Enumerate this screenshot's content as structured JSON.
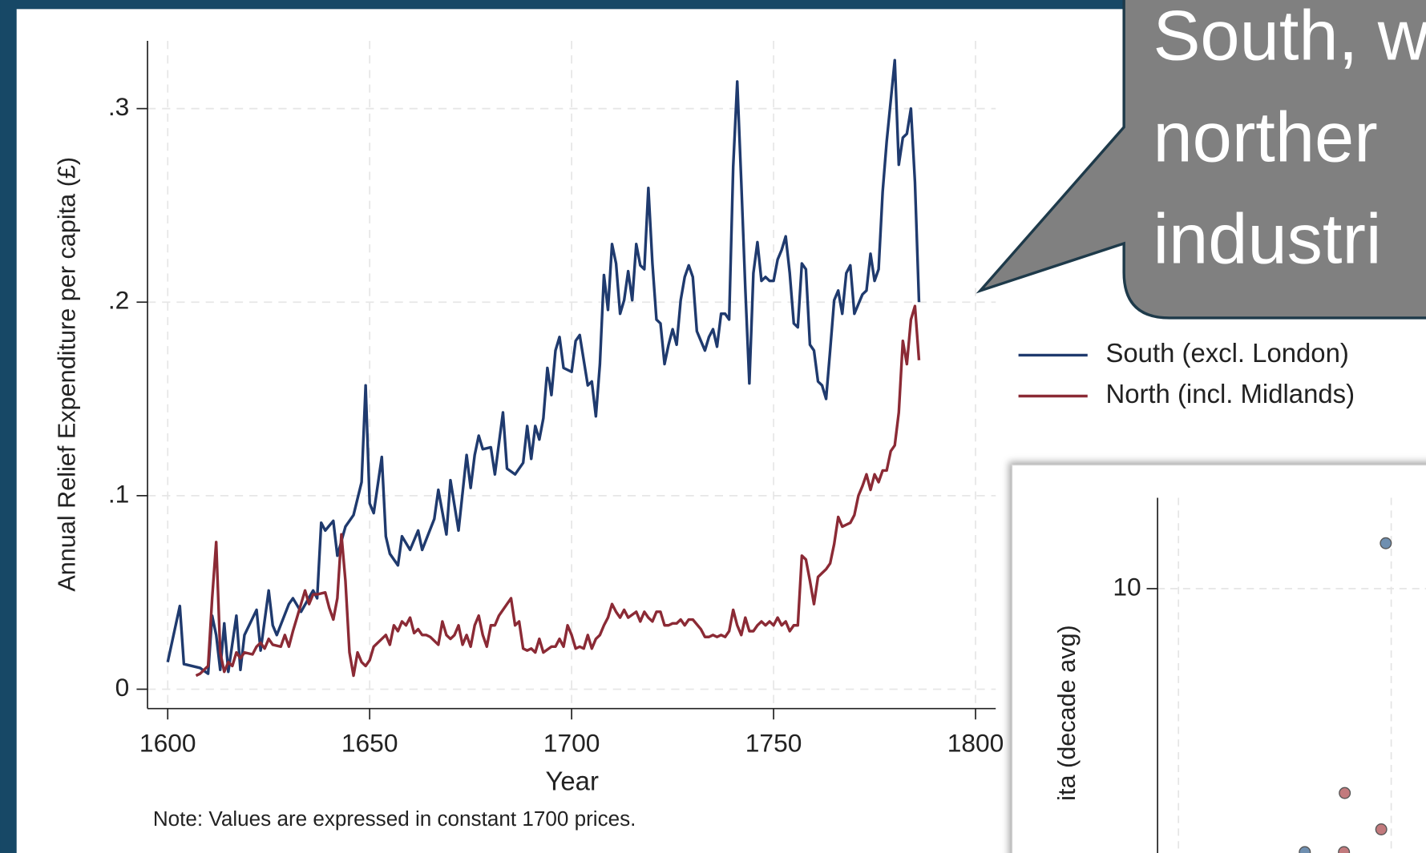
{
  "chart_data": [
    {
      "type": "line",
      "y_label": "Annual Relief Expenditure per capita (£)",
      "x_label": "Year",
      "note": "Note: Values are expressed in constant 1700 prices.",
      "xlim": [
        1595,
        1805
      ],
      "xticks": [
        1600,
        1650,
        1700,
        1750,
        1800
      ],
      "ylim": [
        -0.01,
        0.335
      ],
      "yticks": [
        0,
        {
          "value": 0.1,
          "label": ".1"
        },
        {
          "value": 0.2,
          "label": ".2"
        },
        {
          "value": 0.3,
          "label": ".3"
        }
      ],
      "grid": true,
      "legend": "right",
      "series": [
        {
          "name": "South (excl. London)",
          "color": "#1f3a6e",
          "x": [
            1600,
            1603,
            1604,
            1608,
            1610,
            1611,
            1612,
            1613,
            1614,
            1615,
            1617,
            1618,
            1619,
            1622,
            1623,
            1625,
            1626,
            1627,
            1630,
            1631,
            1633,
            1636,
            1637,
            1638,
            1639,
            1641,
            1642,
            1644,
            1646,
            1648,
            1649,
            1650,
            1651,
            1653,
            1654,
            1655,
            1657,
            1658,
            1660,
            1662,
            1663,
            1666,
            1667,
            1669,
            1670,
            1672,
            1674,
            1675,
            1676,
            1677,
            1678,
            1680,
            1681,
            1683,
            1684,
            1686,
            1688,
            1689,
            1690,
            1691,
            1692,
            1693,
            1694,
            1695,
            1696,
            1697,
            1698,
            1700,
            1701,
            1702,
            1704,
            1705,
            1706,
            1707,
            1708,
            1709,
            1710,
            1711,
            1712,
            1713,
            1714,
            1715,
            1716,
            1717,
            1718,
            1719,
            1720,
            1721,
            1722,
            1723,
            1724,
            1725,
            1726,
            1727,
            1728,
            1729,
            1730,
            1731,
            1732,
            1733,
            1734,
            1735,
            1736,
            1737,
            1738,
            1739,
            1740,
            1741,
            1742,
            1743,
            1744,
            1745,
            1746,
            1747,
            1748,
            1749,
            1750,
            1751,
            1752,
            1753,
            1754,
            1755,
            1756,
            1757,
            1758,
            1759,
            1760,
            1761,
            1762,
            1763,
            1764,
            1765,
            1766,
            1767,
            1768,
            1769,
            1770,
            1771,
            1772,
            1773,
            1774,
            1775,
            1776,
            1777,
            1778,
            1779,
            1780,
            1781,
            1782,
            1783,
            1784,
            1785,
            1786
          ],
          "values": [
            0.014,
            0.043,
            0.013,
            0.011,
            0.008,
            0.038,
            0.028,
            0.01,
            0.034,
            0.009,
            0.038,
            0.01,
            0.028,
            0.041,
            0.02,
            0.051,
            0.033,
            0.028,
            0.044,
            0.047,
            0.04,
            0.051,
            0.047,
            0.086,
            0.082,
            0.087,
            0.069,
            0.084,
            0.09,
            0.107,
            0.157,
            0.096,
            0.091,
            0.12,
            0.079,
            0.07,
            0.064,
            0.079,
            0.072,
            0.082,
            0.072,
            0.088,
            0.103,
            0.08,
            0.108,
            0.082,
            0.121,
            0.104,
            0.121,
            0.131,
            0.124,
            0.125,
            0.111,
            0.143,
            0.114,
            0.111,
            0.117,
            0.136,
            0.119,
            0.136,
            0.129,
            0.14,
            0.166,
            0.152,
            0.175,
            0.182,
            0.166,
            0.164,
            0.18,
            0.183,
            0.157,
            0.159,
            0.141,
            0.168,
            0.214,
            0.196,
            0.23,
            0.22,
            0.194,
            0.201,
            0.216,
            0.201,
            0.23,
            0.219,
            0.217,
            0.259,
            0.22,
            0.191,
            0.189,
            0.168,
            0.178,
            0.186,
            0.178,
            0.201,
            0.213,
            0.219,
            0.213,
            0.185,
            0.18,
            0.175,
            0.182,
            0.186,
            0.177,
            0.194,
            0.194,
            0.191,
            0.27,
            0.314,
            0.262,
            0.207,
            0.158,
            0.215,
            0.231,
            0.211,
            0.213,
            0.211,
            0.211,
            0.222,
            0.227,
            0.234,
            0.215,
            0.189,
            0.187,
            0.22,
            0.217,
            0.178,
            0.175,
            0.159,
            0.157,
            0.15,
            0.175,
            0.201,
            0.206,
            0.194,
            0.215,
            0.219,
            0.194,
            0.199,
            0.204,
            0.206,
            0.225,
            0.211,
            0.217,
            0.257,
            0.283,
            0.304,
            0.325,
            0.271,
            0.285,
            0.287,
            0.3,
            0.262,
            0.2
          ]
        },
        {
          "name": "North (incl. Midlands)",
          "color": "#8b2a35",
          "x": [
            1607,
            1608,
            1610,
            1611,
            1612,
            1613,
            1614,
            1615,
            1616,
            1617,
            1618,
            1619,
            1621,
            1622,
            1623,
            1624,
            1625,
            1626,
            1628,
            1629,
            1630,
            1631,
            1632,
            1633,
            1634,
            1635,
            1636,
            1637,
            1639,
            1640,
            1641,
            1642,
            1643,
            1644,
            1645,
            1646,
            1647,
            1648,
            1649,
            1650,
            1651,
            1653,
            1654,
            1655,
            1656,
            1657,
            1658,
            1659,
            1660,
            1661,
            1662,
            1663,
            1664,
            1665,
            1667,
            1668,
            1669,
            1670,
            1671,
            1672,
            1673,
            1674,
            1675,
            1676,
            1677,
            1678,
            1679,
            1680,
            1681,
            1682,
            1684,
            1685,
            1686,
            1687,
            1688,
            1689,
            1690,
            1691,
            1692,
            1693,
            1695,
            1696,
            1697,
            1698,
            1699,
            1700,
            1701,
            1702,
            1703,
            1704,
            1705,
            1706,
            1707,
            1708,
            1709,
            1710,
            1711,
            1712,
            1713,
            1714,
            1716,
            1717,
            1718,
            1719,
            1720,
            1721,
            1722,
            1723,
            1724,
            1725,
            1726,
            1727,
            1728,
            1729,
            1730,
            1732,
            1733,
            1734,
            1735,
            1736,
            1737,
            1738,
            1739,
            1740,
            1741,
            1742,
            1743,
            1744,
            1745,
            1746,
            1747,
            1748,
            1749,
            1750,
            1751,
            1752,
            1753,
            1754,
            1755,
            1756,
            1757,
            1758,
            1759,
            1760,
            1761,
            1762,
            1763,
            1764,
            1765,
            1766,
            1767,
            1768,
            1769,
            1770,
            1771,
            1772,
            1773,
            1774,
            1775,
            1776,
            1777,
            1778,
            1779,
            1780,
            1781,
            1782,
            1783,
            1784,
            1785,
            1786
          ],
          "values": [
            0.007,
            0.008,
            0.012,
            0.047,
            0.076,
            0.019,
            0.009,
            0.014,
            0.012,
            0.019,
            0.016,
            0.019,
            0.018,
            0.022,
            0.024,
            0.021,
            0.026,
            0.023,
            0.022,
            0.028,
            0.022,
            0.03,
            0.037,
            0.044,
            0.051,
            0.044,
            0.049,
            0.049,
            0.05,
            0.042,
            0.036,
            0.047,
            0.08,
            0.056,
            0.019,
            0.007,
            0.019,
            0.014,
            0.012,
            0.015,
            0.022,
            0.026,
            0.028,
            0.023,
            0.033,
            0.03,
            0.035,
            0.033,
            0.037,
            0.029,
            0.031,
            0.028,
            0.028,
            0.027,
            0.023,
            0.035,
            0.028,
            0.026,
            0.028,
            0.033,
            0.023,
            0.028,
            0.022,
            0.033,
            0.038,
            0.028,
            0.022,
            0.033,
            0.033,
            0.038,
            0.044,
            0.047,
            0.033,
            0.035,
            0.021,
            0.02,
            0.021,
            0.019,
            0.026,
            0.019,
            0.022,
            0.022,
            0.026,
            0.022,
            0.033,
            0.028,
            0.021,
            0.022,
            0.021,
            0.028,
            0.021,
            0.026,
            0.028,
            0.033,
            0.037,
            0.044,
            0.04,
            0.037,
            0.041,
            0.037,
            0.04,
            0.035,
            0.04,
            0.037,
            0.035,
            0.04,
            0.04,
            0.033,
            0.033,
            0.034,
            0.034,
            0.036,
            0.033,
            0.036,
            0.036,
            0.031,
            0.027,
            0.027,
            0.028,
            0.027,
            0.028,
            0.027,
            0.03,
            0.041,
            0.033,
            0.028,
            0.037,
            0.03,
            0.03,
            0.033,
            0.035,
            0.033,
            0.035,
            0.033,
            0.037,
            0.033,
            0.035,
            0.03,
            0.033,
            0.033,
            0.069,
            0.067,
            0.056,
            0.044,
            0.058,
            0.06,
            0.062,
            0.065,
            0.075,
            0.089,
            0.084,
            0.085,
            0.086,
            0.09,
            0.1,
            0.105,
            0.111,
            0.103,
            0.111,
            0.107,
            0.113,
            0.113,
            0.123,
            0.126,
            0.143,
            0.18,
            0.168,
            0.191,
            0.198,
            0.17
          ]
        }
      ]
    },
    {
      "type": "scatter",
      "y_label": "ita (decade avg)",
      "xlim": [
        0,
        100
      ],
      "ylim": [
        2,
        11
      ],
      "yticks": [
        10
      ],
      "grid": true,
      "series": [
        {
          "color": "#6f8fb0",
          "x": [
            85.1,
            54.9
          ],
          "values": [
            10.5,
            7.1
          ]
        },
        {
          "color": "#c27a7d",
          "x": [
            69.8,
            83.4,
            69.5
          ],
          "values": [
            7.75,
            7.35,
            7.1
          ]
        }
      ]
    }
  ],
  "callout": {
    "lines": [
      "South, w",
      "norther",
      "industri"
    ]
  }
}
